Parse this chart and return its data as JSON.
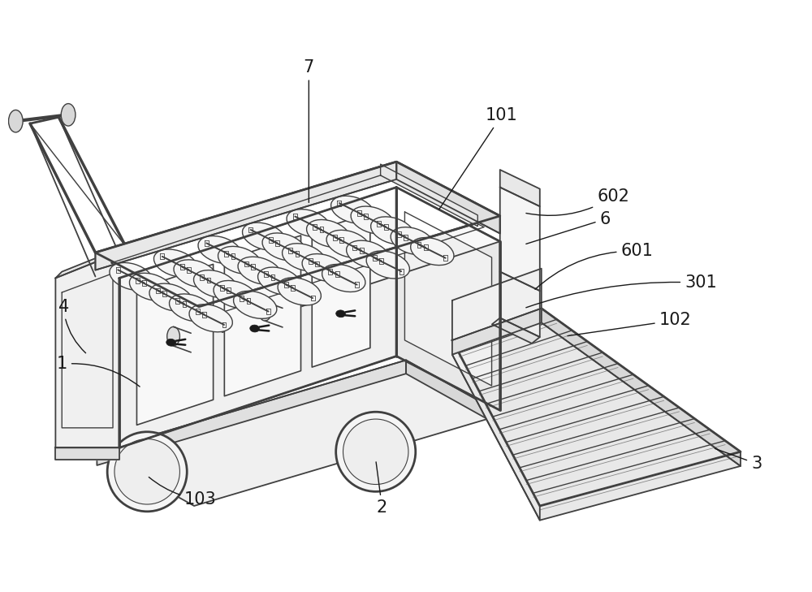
{
  "bg_color": "#ffffff",
  "line_color": "#404040",
  "line_width": 1.3,
  "thick_line": 2.0,
  "fig_width": 10.0,
  "fig_height": 7.29,
  "label_fontsize": 15
}
